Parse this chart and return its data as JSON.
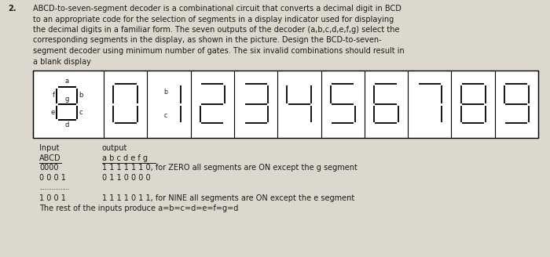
{
  "background_color": "#ddd8ce",
  "text_color": "#1a1a1a",
  "title_number": "2.",
  "para_lines": [
    "ABCD-to-seven-segment decoder is a combinational circuit that converts a decimal digit in BCD",
    "to an appropriate code for the selection of segments in a display indicator used for displaying",
    "the decimal digits in a familiar form. The seven outputs of the decoder (a,b,c,d,e,f,g) select the",
    "corresponding segments in the display, as shown in the picture. Design the BCD-to-seven-",
    "segment decoder using minimum number of gates. The six invalid combinations should result in",
    "a blank display"
  ],
  "segment_digits": [
    0,
    1,
    2,
    3,
    4,
    5,
    6,
    7,
    8,
    9
  ],
  "seg_map": {
    "0": [
      1,
      1,
      1,
      1,
      1,
      1,
      0
    ],
    "1": [
      0,
      1,
      1,
      0,
      0,
      0,
      0
    ],
    "2": [
      1,
      1,
      0,
      1,
      1,
      0,
      1
    ],
    "3": [
      1,
      1,
      1,
      1,
      0,
      0,
      1
    ],
    "4": [
      0,
      1,
      1,
      0,
      0,
      1,
      1
    ],
    "5": [
      1,
      0,
      1,
      1,
      0,
      1,
      1
    ],
    "6": [
      1,
      0,
      1,
      1,
      1,
      1,
      1
    ],
    "7": [
      1,
      1,
      1,
      0,
      0,
      0,
      0
    ],
    "8": [
      1,
      1,
      1,
      1,
      1,
      1,
      1
    ],
    "9": [
      1,
      1,
      1,
      1,
      0,
      1,
      1
    ]
  },
  "table_header_input": "Input",
  "table_header_output": "output",
  "table_col1": "ABCD",
  "table_col2": "a b c d e f g",
  "row1_left": "0000",
  "row1_right": "1 1 1 1 1 1 0, for ZERO all segments are ON except the g segment",
  "row2_left": "0 0 0 1",
  "row2_right": "0 1 1 0 0 0 0",
  "dots": ".................",
  "row3_left": "1 0 0 1",
  "row3_right": "1 1 1 1 0 1 1, for NINE all segments are ON except the e segment",
  "row4": "The rest of the inputs produce a=b=c=d=e=f=g=d",
  "font_size_body": 7.0,
  "font_size_table": 7.0,
  "font_size_label": 6.0
}
